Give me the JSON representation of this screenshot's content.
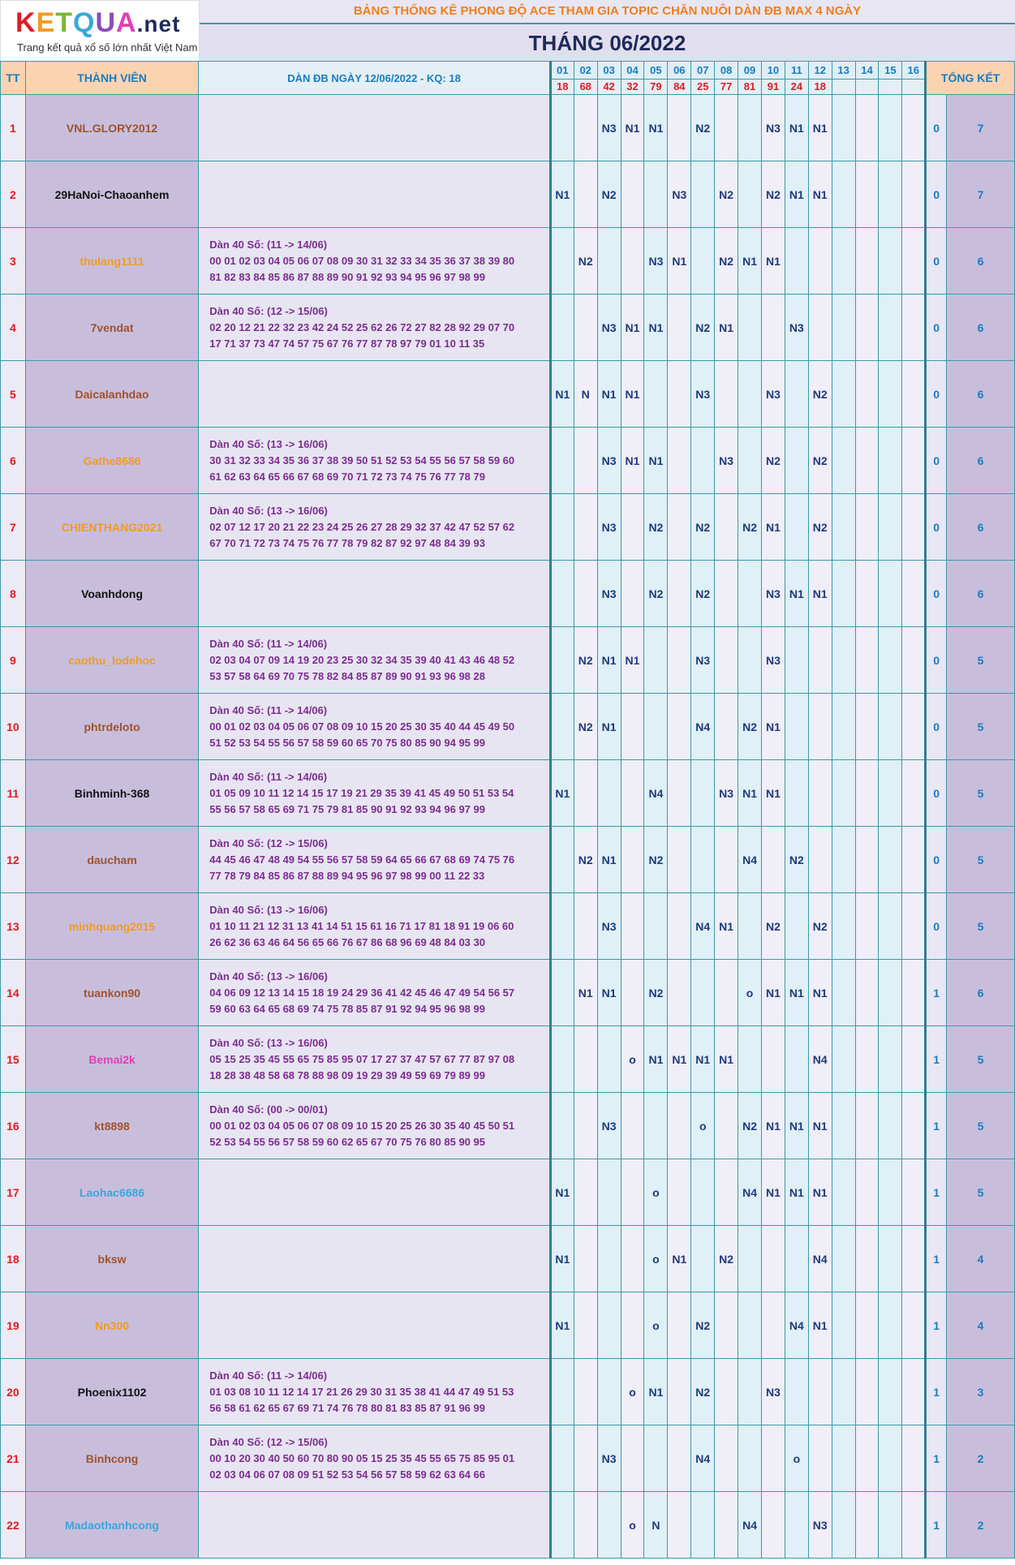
{
  "logo": {
    "letters": [
      "K",
      "E",
      "T",
      "Q",
      "U",
      "A"
    ],
    "suffix": ".net",
    "tagline": "Trang kết quả xổ số lớn nhất Việt Nam"
  },
  "title": {
    "line1": "BẢNG THỐNG KÊ PHONG ĐỘ ACE THAM GIA TOPIC CHĂN NUÔI DÀN ĐB MAX 4 NGÀY",
    "month": "THÁNG 06/2022"
  },
  "headers": {
    "tt": "TT",
    "member": "THÀNH VIÊN",
    "dan": "DÀN ĐB NGÀY 12/06/2022 - KQ: 18",
    "summary": "TỔNG KẾT"
  },
  "days": [
    "01",
    "02",
    "03",
    "04",
    "05",
    "06",
    "07",
    "08",
    "09",
    "10",
    "11",
    "12",
    "13",
    "14",
    "15",
    "16"
  ],
  "results": [
    "18",
    "68",
    "42",
    "32",
    "79",
    "84",
    "25",
    "77",
    "81",
    "91",
    "24",
    "18",
    "",
    "",
    "",
    ""
  ],
  "colors": {
    "red": "#e01b23",
    "blue": "#1b7bbf",
    "navy": "#1f3a7a",
    "purple": "#7b2d8e",
    "orange": "#ef7f1a"
  },
  "rows": [
    {
      "tt": "1",
      "name": "VNL.GLORY2012",
      "color": "#a0522d",
      "dan_title": "",
      "dan_l1": "",
      "dan_l2": "",
      "cells": [
        "",
        "",
        "N3",
        "N1",
        "N1",
        "",
        "N2",
        "",
        "",
        "N3",
        "N1",
        "N1",
        "",
        "",
        "",
        ""
      ],
      "s1": "0",
      "s2": "7"
    },
    {
      "tt": "2",
      "name": "29HaNoi-Chaoanhem",
      "color": "#111111",
      "dan_title": "",
      "dan_l1": "",
      "dan_l2": "",
      "cells": [
        "N1",
        "",
        "N2",
        "",
        "",
        "N3",
        "",
        "N2",
        "",
        "N2",
        "N1",
        "N1",
        "",
        "",
        "",
        ""
      ],
      "s1": "0",
      "s2": "7"
    },
    {
      "tt": "3",
      "name": "thulang1111",
      "color": "#f29b22",
      "dan_title": "Dàn 40 Số: (11 -> 14/06)",
      "dan_l1": "00 01 02 03 04 05 06 07 08 09 30 31 32 33 34 35 36 37 38 39 80",
      "dan_l2": "81 82 83 84 85 86 87 88 89 90 91 92 93 94 95 96 97 98 99",
      "cells": [
        "",
        "N2",
        "",
        "",
        "N3",
        "N1",
        "",
        "N2",
        "N1",
        "N1",
        "",
        "",
        "",
        "",
        "",
        ""
      ],
      "s1": "0",
      "s2": "6"
    },
    {
      "tt": "4",
      "name": "7vendat",
      "color": "#a0522d",
      "dan_title": "Dàn 40 Số: (12 -> 15/06)",
      "dan_l1": "02 20 12 21 22 32 23 42 24 52 25 62 26 72 27 82 28 92 29 07 70",
      "dan_l2": "17 71 37 73 47 74 57 75 67 76 77 87 78 97 79 01 10 11 35",
      "cells": [
        "",
        "",
        "N3",
        "N1",
        "N1",
        "",
        "N2",
        "N1",
        "",
        "",
        "N3",
        "",
        "",
        "",
        "",
        ""
      ],
      "s1": "0",
      "s2": "6"
    },
    {
      "tt": "5",
      "name": "Daicalanhdao",
      "color": "#a0522d",
      "dan_title": "",
      "dan_l1": "",
      "dan_l2": "",
      "cells": [
        "N1",
        "N",
        "N1",
        "N1",
        "",
        "",
        "N3",
        "",
        "",
        "N3",
        "",
        "N2",
        "",
        "",
        "",
        ""
      ],
      "s1": "0",
      "s2": "6"
    },
    {
      "tt": "6",
      "name": "Gathe8686",
      "color": "#f29b22",
      "dan_title": "Dàn 40 Số: (13 -> 16/06)",
      "dan_l1": "30 31 32 33 34 35 36 37 38 39 50 51 52 53 54 55 56 57 58 59 60",
      "dan_l2": "61 62 63 64 65 66 67 68 69 70 71 72 73 74 75 76 77 78 79",
      "cells": [
        "",
        "",
        "N3",
        "N1",
        "N1",
        "",
        "",
        "N3",
        "",
        "N2",
        "",
        "N2",
        "",
        "",
        "",
        ""
      ],
      "s1": "0",
      "s2": "6"
    },
    {
      "tt": "7",
      "name": "CHIENTHANG2021",
      "color": "#f29b22",
      "dan_title": "Dàn 40 Số: (13 -> 16/06)",
      "dan_l1": "02 07 12 17 20 21 22 23 24 25 26 27 28 29 32 37 42 47 52 57 62",
      "dan_l2": "67 70 71 72 73 74 75 76 77 78 79 82 87 92 97 48 84 39 93",
      "cells": [
        "",
        "",
        "N3",
        "",
        "N2",
        "",
        "N2",
        "",
        "N2",
        "N1",
        "",
        "N2",
        "",
        "",
        "",
        ""
      ],
      "s1": "0",
      "s2": "6"
    },
    {
      "tt": "8",
      "name": "Voanhdong",
      "color": "#111111",
      "dan_title": "",
      "dan_l1": "",
      "dan_l2": "",
      "cells": [
        "",
        "",
        "N3",
        "",
        "N2",
        "",
        "N2",
        "",
        "",
        "N3",
        "N1",
        "N1",
        "",
        "",
        "",
        ""
      ],
      "s1": "0",
      "s2": "6"
    },
    {
      "tt": "9",
      "name": "caothu_lodehoc",
      "color": "#f29b22",
      "dan_title": "Dàn 40 Số: (11 -> 14/06)",
      "dan_l1": "02 03 04 07 09 14 19 20 23 25 30 32 34 35 39 40 41 43 46 48 52",
      "dan_l2": "53 57 58 64 69 70 75 78 82 84 85 87 89 90 91 93 96 98 28",
      "cells": [
        "",
        "N2",
        "N1",
        "N1",
        "",
        "",
        "N3",
        "",
        "",
        "N3",
        "",
        "",
        "",
        "",
        "",
        ""
      ],
      "s1": "0",
      "s2": "5"
    },
    {
      "tt": "10",
      "name": "phtrdeloto",
      "color": "#a0522d",
      "dan_title": "Dàn 40 Số: (11 -> 14/06)",
      "dan_l1": "00 01 02 03 04 05 06 07 08 09 10 15 20 25 30 35 40 44 45 49 50",
      "dan_l2": "51 52 53 54 55 56 57 58 59 60 65 70 75 80 85 90 94 95 99",
      "cells": [
        "",
        "N2",
        "N1",
        "",
        "",
        "",
        "N4",
        "",
        "N2",
        "N1",
        "",
        "",
        "",
        "",
        "",
        ""
      ],
      "s1": "0",
      "s2": "5"
    },
    {
      "tt": "11",
      "name": "Binhminh-368",
      "color": "#111111",
      "dan_title": "Dàn 40 Số: (11 -> 14/06)",
      "dan_l1": "01 05 09 10 11 12 14 15 17 19 21 29 35 39 41 45 49 50 51 53 54",
      "dan_l2": "55 56 57 58 65 69 71 75 79 81 85 90 91 92 93 94 96 97 99",
      "cells": [
        "N1",
        "",
        "",
        "",
        "N4",
        "",
        "",
        "N3",
        "N1",
        "N1",
        "",
        "",
        "",
        "",
        "",
        ""
      ],
      "s1": "0",
      "s2": "5"
    },
    {
      "tt": "12",
      "name": "daucham",
      "color": "#a0522d",
      "dan_title": "Dàn 40 Số: (12 -> 15/06)",
      "dan_l1": "44 45 46 47 48 49 54 55 56 57 58 59 64 65 66 67 68 69 74 75 76",
      "dan_l2": "77 78 79 84 85 86 87 88 89 94 95 96 97 98 99 00 11 22 33",
      "cells": [
        "",
        "N2",
        "N1",
        "",
        "N2",
        "",
        "",
        "",
        "N4",
        "",
        "N2",
        "",
        "",
        "",
        "",
        ""
      ],
      "s1": "0",
      "s2": "5"
    },
    {
      "tt": "13",
      "name": "minhquang2015",
      "color": "#f29b22",
      "dan_title": "Dàn 40 Số: (13 -> 16/06)",
      "dan_l1": "01 10 11 21 12 31 13 41 14 51 15 61 16 71 17 81 18 91 19 06 60",
      "dan_l2": "26 62 36 63 46 64 56 65 66 76 67 86 68 96 69 48 84 03 30",
      "cells": [
        "",
        "",
        "N3",
        "",
        "",
        "",
        "N4",
        "N1",
        "",
        "N2",
        "",
        "N2",
        "",
        "",
        "",
        ""
      ],
      "s1": "0",
      "s2": "5"
    },
    {
      "tt": "14",
      "name": "tuankon90",
      "color": "#a0522d",
      "dan_title": "Dàn 40 Số: (13 -> 16/06)",
      "dan_l1": "04 06 09 12 13 14 15 18 19 24 29 36 41 42 45 46 47 49 54 56 57",
      "dan_l2": "59 60 63 64 65 68 69 74 75 78 85 87 91 92 94 95 96 98 99",
      "cells": [
        "",
        "N1",
        "N1",
        "",
        "N2",
        "",
        "",
        "",
        "o",
        "N1",
        "N1",
        "N1",
        "",
        "",
        "",
        ""
      ],
      "s1": "1",
      "s2": "6"
    },
    {
      "tt": "15",
      "name": "Bemai2k",
      "color": "#e23fb4",
      "dan_title": "Dàn 40 Số: (13 -> 16/06)",
      "dan_l1": "05 15 25 35 45 55 65 75 85 95 07 17 27 37 47 57 67 77 87 97 08",
      "dan_l2": "18 28 38 48 58 68 78 88 98 09 19 29 39 49 59 69 79 89 99",
      "cells": [
        "",
        "",
        "",
        "o",
        "N1",
        "N1",
        "N1",
        "N1",
        "",
        "",
        "",
        "N4",
        "",
        "",
        "",
        ""
      ],
      "s1": "1",
      "s2": "5"
    },
    {
      "tt": "16",
      "name": "kt8898",
      "color": "#a0522d",
      "dan_title": "Dàn 40 Số: (00 -> 00/01)",
      "dan_l1": "00 01 02 03 04 05 06 07 08 09 10 15 20 25 26 30 35 40 45 50 51",
      "dan_l2": "52 53 54 55 56 57 58 59 60 62 65 67 70 75 76 80 85 90 95",
      "cells": [
        "",
        "",
        "N3",
        "",
        "",
        "",
        "o",
        "",
        "N2",
        "N1",
        "N1",
        "N1",
        "",
        "",
        "",
        ""
      ],
      "s1": "1",
      "s2": "5"
    },
    {
      "tt": "17",
      "name": "Laohac6686",
      "color": "#3aa6dd",
      "dan_title": "",
      "dan_l1": "",
      "dan_l2": "",
      "cells": [
        "N1",
        "",
        "",
        "",
        "o",
        "",
        "",
        "",
        "N4",
        "N1",
        "N1",
        "N1",
        "",
        "",
        "",
        ""
      ],
      "s1": "1",
      "s2": "5"
    },
    {
      "tt": "18",
      "name": "bksw",
      "color": "#a0522d",
      "dan_title": "",
      "dan_l1": "",
      "dan_l2": "",
      "cells": [
        "N1",
        "",
        "",
        "",
        "o",
        "N1",
        "",
        "N2",
        "",
        "",
        "",
        "N4",
        "",
        "",
        "",
        ""
      ],
      "s1": "1",
      "s2": "4"
    },
    {
      "tt": "19",
      "name": "Nn300",
      "color": "#f29b22",
      "dan_title": "",
      "dan_l1": "",
      "dan_l2": "",
      "cells": [
        "N1",
        "",
        "",
        "",
        "o",
        "",
        "N2",
        "",
        "",
        "",
        "N4",
        "N1",
        "",
        "",
        "",
        ""
      ],
      "s1": "1",
      "s2": "4"
    },
    {
      "tt": "20",
      "name": "Phoenix1102",
      "color": "#111111",
      "dan_title": "Dàn 40 Số: (11 -> 14/06)",
      "dan_l1": "01 03 08 10 11 12 14 17 21 26 29 30 31 35 38 41 44 47 49 51 53",
      "dan_l2": "56 58 61 62 65 67 69 71 74 76 78 80 81 83 85 87 91 96 99",
      "cells": [
        "",
        "",
        "",
        "o",
        "N1",
        "",
        "N2",
        "",
        "",
        "N3",
        "",
        "",
        "",
        "",
        "",
        ""
      ],
      "s1": "1",
      "s2": "3"
    },
    {
      "tt": "21",
      "name": "Binhcong",
      "color": "#a0522d",
      "dan_title": "Dàn 40 Số: (12 -> 15/06)",
      "dan_l1": "00 10 20 30 40 50 60 70 80 90 05 15 25 35 45 55 65 75 85 95 01",
      "dan_l2": "02 03 04 06 07 08 09 51 52 53 54 56 57 58 59 62 63 64 66",
      "cells": [
        "",
        "",
        "N3",
        "",
        "",
        "",
        "N4",
        "",
        "",
        "",
        "o",
        "",
        "",
        "",
        "",
        ""
      ],
      "s1": "1",
      "s2": "2"
    },
    {
      "tt": "22",
      "name": "Madaothanhcong",
      "color": "#3aa6dd",
      "dan_title": "",
      "dan_l1": "",
      "dan_l2": "",
      "cells": [
        "",
        "",
        "",
        "o",
        "N",
        "",
        "",
        "",
        "N4",
        "",
        "",
        "N3",
        "",
        "",
        "",
        ""
      ],
      "s1": "1",
      "s2": "2"
    }
  ]
}
